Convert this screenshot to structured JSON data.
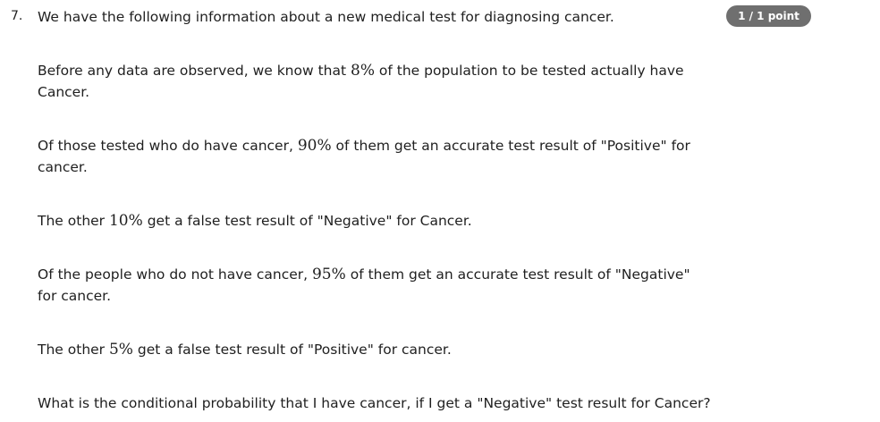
{
  "question": {
    "number": "7.",
    "score": "1 / 1 point",
    "paragraphs": [
      {
        "text": "We have the following information about a new medical test for diagnosing cancer."
      },
      {
        "before": "Before any data are observed, we know that ",
        "math": "8%",
        "after": " of the population to be tested actually have Cancer."
      },
      {
        "before": "Of those tested who do have cancer, ",
        "math": "90%",
        "after": " of them get an accurate test result of \"Positive\" for cancer."
      },
      {
        "before": "The other ",
        "math": "10%",
        "after": " get a false test result of \"Negative\" for Cancer."
      },
      {
        "before": "Of the people who do not have cancer, ",
        "math": "95%",
        "after": " of them get an accurate test result of \"Negative\" for cancer."
      },
      {
        "before": "The other ",
        "math": "5%",
        "after": " get a false test result of \"Positive\" for cancer."
      },
      {
        "text": "What is the conditional probability that I have cancer, if I get a \"Negative\" test result for Cancer?"
      }
    ]
  }
}
